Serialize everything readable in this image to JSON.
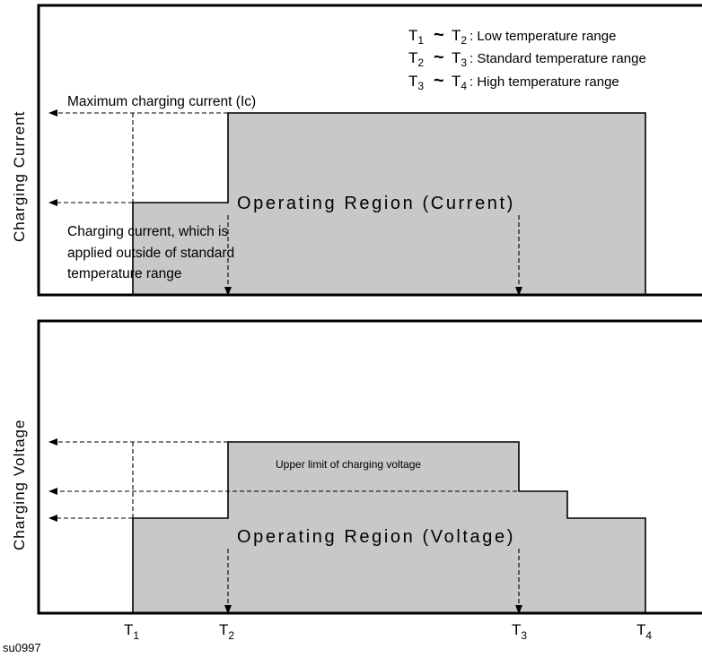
{
  "legend": {
    "row1": {
      "a": "T",
      "a_sub": "1",
      "b": "T",
      "b_sub": "2",
      "text": ":  Low temperature range"
    },
    "row2": {
      "a": "T",
      "a_sub": "2",
      "b": "T",
      "b_sub": "3",
      "text": ":  Standard temperature range"
    },
    "row3": {
      "a": "T",
      "a_sub": "3",
      "b": "T",
      "b_sub": "4",
      "text": ":  High temperature range"
    },
    "tilde": "~"
  },
  "current_panel": {
    "axis_title": "Charging Current",
    "max_current_label": "Maximum charging current (Ic)",
    "region_label": "Operating Region (Current)",
    "reduced_current_label": [
      "Charging current, which is",
      "applied outside of standard",
      "temperature range"
    ]
  },
  "voltage_panel": {
    "axis_title": "Charging Voltage",
    "region_label": "Operating Region (Voltage)",
    "upper_limit_label": "Upper limit of charging voltage"
  },
  "x_ticks": [
    {
      "name": "T",
      "sub": "1"
    },
    {
      "name": "T",
      "sub": "2"
    },
    {
      "name": "T",
      "sub": "3"
    },
    {
      "name": "T",
      "sub": "4"
    }
  ],
  "figure_code": "su0997",
  "colors": {
    "region_fill": "#c8c8c8",
    "line": "#000000",
    "background": "#ffffff"
  }
}
